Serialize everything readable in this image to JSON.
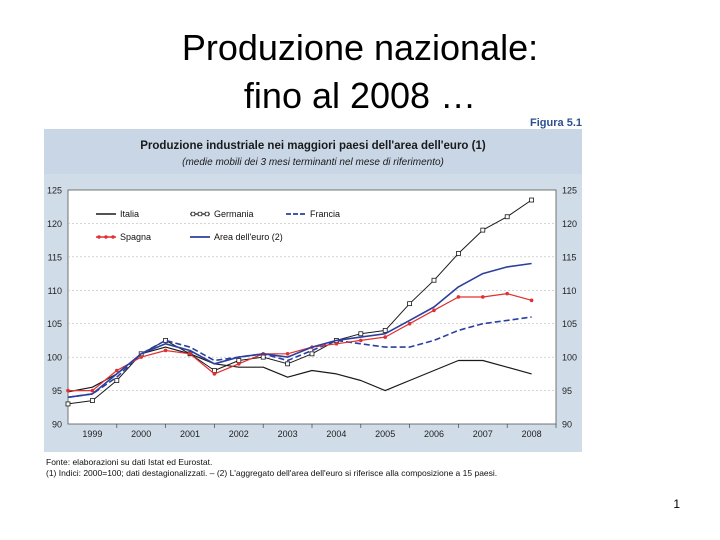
{
  "slide": {
    "title_line1": "Produzione nazionale:",
    "title_line2": "fino al 2008 …",
    "page_number": "1"
  },
  "figure": {
    "label": "Figura 5.1",
    "notes_line1": "Fonte: elaborazioni su dati Istat ed Eurostat.",
    "notes_line2": "(1) Indici: 2000=100; dati destagionalizzati. – (2) L'aggregato dell'area dell'euro si riferisce alla composizione a 15 paesi."
  },
  "colors": {
    "frame": "#d0dde9",
    "plot": "#ffffff",
    "italia": "#1a1a1a",
    "germania": "#1a1a1a",
    "francia": "#2b3fa0",
    "spagna": "#e03030",
    "area_euro": "#2b3fa0"
  },
  "chart_data": {
    "type": "line",
    "title": "Produzione industriale nei maggiori paesi dell'area dell'euro (1)",
    "subtitle": "(medie mobili dei 3 mesi terminanti nel mese di riferimento)",
    "xlabel": "",
    "ylabel": "",
    "x_ticks": [
      "1999",
      "2000",
      "2001",
      "2002",
      "2003",
      "2004",
      "2005",
      "2006",
      "2007",
      "2008"
    ],
    "y_ticks": [
      "90",
      "95",
      "100",
      "105",
      "110",
      "115",
      "120",
      "125"
    ],
    "xlim": [
      1998.5,
      2008.5
    ],
    "ylim": [
      90,
      125
    ],
    "legend_position": "top-left",
    "grid": true,
    "series": [
      {
        "name": "Italia",
        "style": "solid",
        "marker": "none",
        "x": [
          1998.5,
          1999,
          1999.5,
          2000,
          2000.5,
          2001,
          2001.5,
          2002,
          2002.5,
          2003,
          2003.5,
          2004,
          2004.5,
          2005,
          2005.5,
          2006,
          2006.5,
          2007,
          2007.5,
          2008
        ],
        "y": [
          94.8,
          95.5,
          97.5,
          100.5,
          101.5,
          100.5,
          99.0,
          98.5,
          98.5,
          97.0,
          98.0,
          97.5,
          96.5,
          95.0,
          96.5,
          98.0,
          99.5,
          99.5,
          98.5,
          97.5
        ]
      },
      {
        "name": "Germania",
        "style": "solid",
        "marker": "square",
        "x": [
          1998.5,
          1999,
          1999.5,
          2000,
          2000.5,
          2001,
          2001.5,
          2002,
          2002.5,
          2003,
          2003.5,
          2004,
          2004.5,
          2005,
          2005.5,
          2006,
          2006.5,
          2007,
          2007.5,
          2008
        ],
        "y": [
          93.0,
          93.5,
          96.5,
          100.5,
          102.5,
          100.5,
          98.0,
          99.5,
          100.0,
          99.0,
          100.5,
          102.5,
          103.5,
          104.0,
          108.0,
          111.5,
          115.5,
          119.0,
          121.0,
          123.5
        ]
      },
      {
        "name": "Francia",
        "style": "dashed",
        "marker": "none",
        "x": [
          1998.5,
          1999,
          1999.5,
          2000,
          2000.5,
          2001,
          2001.5,
          2002,
          2002.5,
          2003,
          2003.5,
          2004,
          2004.5,
          2005,
          2005.5,
          2006,
          2006.5,
          2007,
          2007.5,
          2008
        ],
        "y": [
          94.0,
          94.5,
          97.0,
          100.5,
          102.5,
          101.5,
          99.5,
          100.0,
          100.5,
          99.5,
          101.0,
          102.5,
          102.0,
          101.5,
          101.5,
          102.5,
          104.0,
          105.0,
          105.5,
          106.0
        ]
      },
      {
        "name": "Spagna",
        "style": "solid",
        "marker": "dot",
        "x": [
          1998.5,
          1999,
          1999.5,
          2000,
          2000.5,
          2001,
          2001.5,
          2002,
          2002.5,
          2003,
          2003.5,
          2004,
          2004.5,
          2005,
          2005.5,
          2006,
          2006.5,
          2007,
          2007.5,
          2008
        ],
        "y": [
          95.0,
          95.0,
          98.0,
          100.0,
          101.0,
          100.5,
          97.5,
          99.0,
          100.5,
          100.5,
          101.5,
          102.0,
          102.5,
          103.0,
          105.0,
          107.0,
          109.0,
          109.0,
          109.5,
          108.5
        ]
      },
      {
        "name": "Area dell'euro (2)",
        "style": "solid",
        "marker": "none",
        "x": [
          1998.5,
          1999,
          1999.5,
          2000,
          2000.5,
          2001,
          2001.5,
          2002,
          2002.5,
          2003,
          2003.5,
          2004,
          2004.5,
          2005,
          2005.5,
          2006,
          2006.5,
          2007,
          2007.5,
          2008
        ],
        "y": [
          94.0,
          94.5,
          97.5,
          100.5,
          102.0,
          101.0,
          99.0,
          100.0,
          100.5,
          100.0,
          101.5,
          102.5,
          103.0,
          103.5,
          105.5,
          107.5,
          110.5,
          112.5,
          113.5,
          114.0
        ]
      }
    ]
  }
}
